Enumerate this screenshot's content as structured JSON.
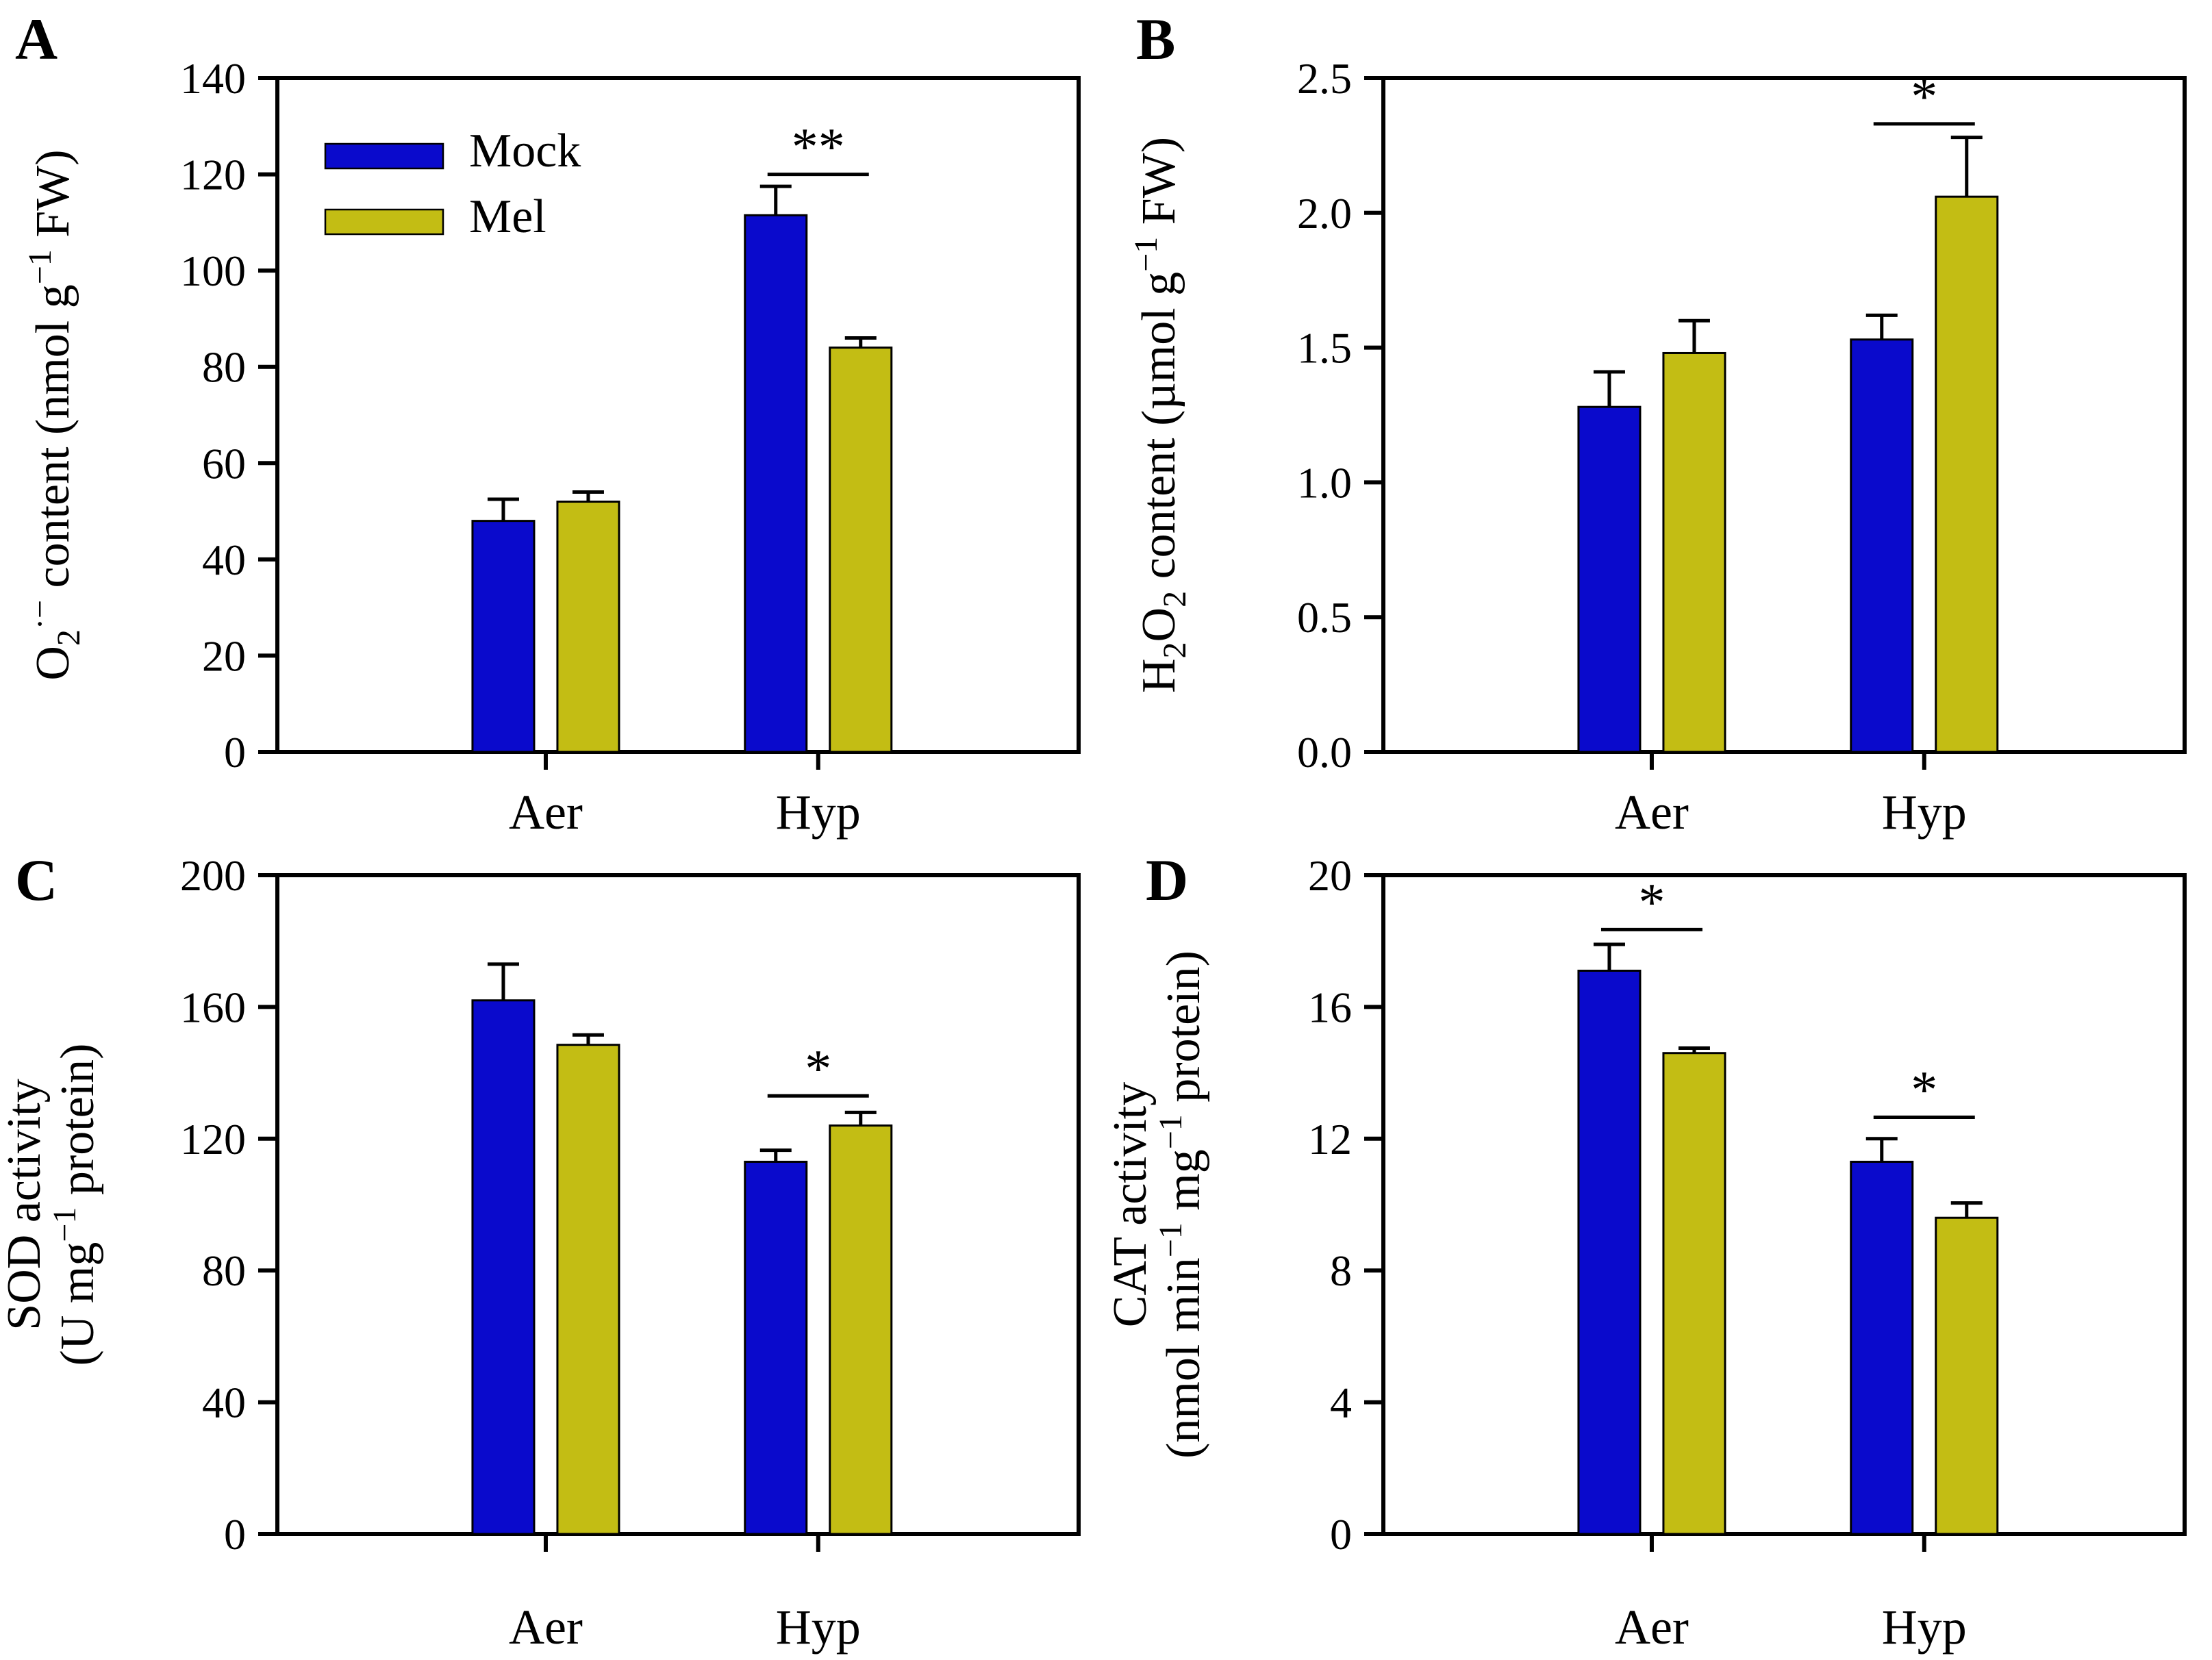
{
  "figure": {
    "background": "#ffffff",
    "axis_color": "#000000",
    "series_colors": {
      "Mock": "#0a0acc",
      "Mel": "#c3bd14"
    },
    "legend": {
      "items": [
        {
          "label": "Mock",
          "series": "Mock"
        },
        {
          "label": "Mel",
          "series": "Mel"
        }
      ],
      "location": "upper-left-inside-panel-A"
    }
  },
  "chart_data": [
    {
      "panel_label": "A",
      "type": "bar",
      "row": "top",
      "show_legend": true,
      "categories": [
        "Aer",
        "Hyp"
      ],
      "series": [
        {
          "name": "Mock",
          "values": [
            48,
            111.5
          ],
          "errors": [
            4.5,
            6
          ]
        },
        {
          "name": "Mel",
          "values": [
            52,
            84
          ],
          "errors": [
            2,
            2
          ]
        }
      ],
      "ylim": [
        0,
        140
      ],
      "yticks": [
        0,
        20,
        40,
        60,
        80,
        100,
        120,
        140
      ],
      "ytick_labels": [
        "0",
        "20",
        "40",
        "60",
        "80",
        "100",
        "120",
        "140"
      ],
      "ylabel_text": "O2·− content (nmol g−1 FW)",
      "ylabel_lines": [
        [
          [
            "O",
            "n"
          ],
          [
            "2",
            "sub"
          ],
          [
            "·−",
            "sup"
          ],
          [
            " content (nmol g",
            "n"
          ],
          [
            "−1",
            "sup"
          ],
          [
            " FW)",
            "n"
          ]
        ]
      ],
      "significance": [
        {
          "category_index": 1,
          "label": "**",
          "line_y": 120
        }
      ]
    },
    {
      "panel_label": "B",
      "type": "bar",
      "row": "top",
      "show_legend": false,
      "categories": [
        "Aer",
        "Hyp"
      ],
      "series": [
        {
          "name": "Mock",
          "values": [
            1.28,
            1.53
          ],
          "errors": [
            0.13,
            0.09
          ]
        },
        {
          "name": "Mel",
          "values": [
            1.48,
            2.06
          ],
          "errors": [
            0.12,
            0.22
          ]
        }
      ],
      "ylim": [
        0,
        2.5
      ],
      "yticks": [
        0,
        0.5,
        1.0,
        1.5,
        2.0,
        2.5
      ],
      "ytick_labels": [
        "0.0",
        "0.5",
        "1.0",
        "1.5",
        "2.0",
        "2.5"
      ],
      "ylabel_text": "H2O2 content (µmol g−1 FW)",
      "ylabel_lines": [
        [
          [
            "H",
            "n"
          ],
          [
            "2",
            "sub"
          ],
          [
            "O",
            "n"
          ],
          [
            "2",
            "sub"
          ],
          [
            " content (µmol g",
            "n"
          ],
          [
            "−1",
            "sup"
          ],
          [
            " FW)",
            "n"
          ]
        ]
      ],
      "significance": [
        {
          "category_index": 1,
          "label": "*",
          "line_y": 2.33
        }
      ]
    },
    {
      "panel_label": "C",
      "type": "bar",
      "row": "bottom",
      "show_legend": false,
      "categories": [
        "Aer",
        "Hyp"
      ],
      "series": [
        {
          "name": "Mock",
          "values": [
            162,
            113
          ],
          "errors": [
            11,
            3.5
          ]
        },
        {
          "name": "Mel",
          "values": [
            148.5,
            124
          ],
          "errors": [
            3,
            4
          ]
        }
      ],
      "ylim": [
        0,
        200
      ],
      "yticks": [
        0,
        40,
        80,
        120,
        160,
        200
      ],
      "ytick_labels": [
        "0",
        "40",
        "80",
        "120",
        "160",
        "200"
      ],
      "ylabel_text": "SOD activity (U mg−1 protein)",
      "ylabel_lines": [
        [
          [
            "SOD activity",
            "n"
          ]
        ],
        [
          [
            "(U mg",
            "n"
          ],
          [
            "−1",
            "sup"
          ],
          [
            " protein)",
            "n"
          ]
        ]
      ],
      "significance": [
        {
          "category_index": 1,
          "label": "*",
          "line_y": 133
        }
      ]
    },
    {
      "panel_label": "D",
      "type": "bar",
      "row": "bottom",
      "show_legend": false,
      "categories": [
        "Aer",
        "Hyp"
      ],
      "series": [
        {
          "name": "Mock",
          "values": [
            17.1,
            11.3
          ],
          "errors": [
            0.8,
            0.7
          ]
        },
        {
          "name": "Mel",
          "values": [
            14.6,
            9.6
          ],
          "errors": [
            0.15,
            0.45
          ]
        }
      ],
      "ylim": [
        0,
        20
      ],
      "yticks": [
        0,
        4,
        8,
        12,
        16,
        20
      ],
      "ytick_labels": [
        "0",
        "4",
        "8",
        "12",
        "16",
        "20"
      ],
      "ylabel_text": "CAT activity (nmol min−1 mg−1 protein)",
      "ylabel_lines": [
        [
          [
            "CAT activity",
            "n"
          ]
        ],
        [
          [
            "(nmol min",
            "n"
          ],
          [
            "−1",
            "sup"
          ],
          [
            " mg",
            "n"
          ],
          [
            "−1",
            "sup"
          ],
          [
            " protein)",
            "n"
          ]
        ]
      ],
      "significance": [
        {
          "category_index": 0,
          "label": "*",
          "line_y": 18.35
        },
        {
          "category_index": 1,
          "label": "*",
          "line_y": 12.65
        }
      ]
    }
  ]
}
